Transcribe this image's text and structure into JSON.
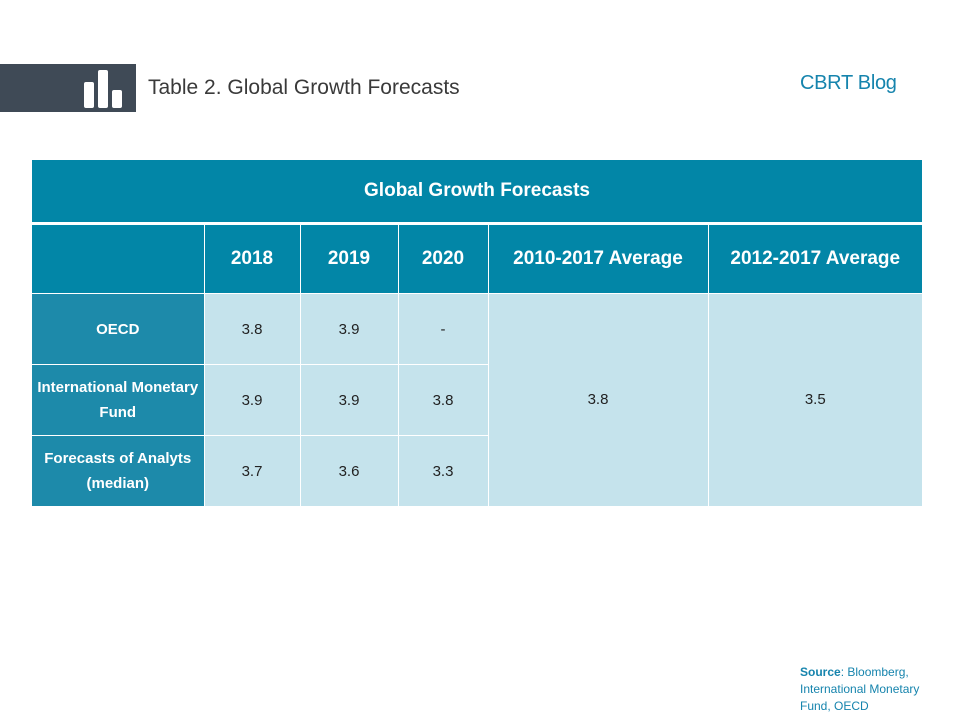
{
  "header": {
    "title_prefix": "Table 2.",
    "title": " Global Growth Forecasts",
    "brand": "CBRT Blog"
  },
  "table": {
    "title": "Global Growth Forecasts",
    "columns": [
      "",
      "2018",
      "2019",
      "2020",
      "2010-2017 Average",
      "2012-2017 Average"
    ],
    "rows": [
      {
        "label": "OECD",
        "values": [
          "3.8",
          "3.9",
          "-"
        ]
      },
      {
        "label": "International Monetary Fund",
        "values": [
          "3.9",
          "3.9",
          "3.8"
        ]
      },
      {
        "label": "Forecasts of Analyts (median)",
        "values": [
          "3.7",
          "3.6",
          "3.3"
        ]
      }
    ],
    "avg_2010_2017": "3.8",
    "avg_2012_2017": "3.5"
  },
  "source": {
    "label": "Source",
    "text": ": Bloomberg, International Monetary Fund, OECD"
  },
  "colors": {
    "header_bar": "#3f4a56",
    "table_header": "#0286a7",
    "row_label": "#1d8aaa",
    "cell": "#c5e3ec",
    "brand": "#1684ad"
  }
}
